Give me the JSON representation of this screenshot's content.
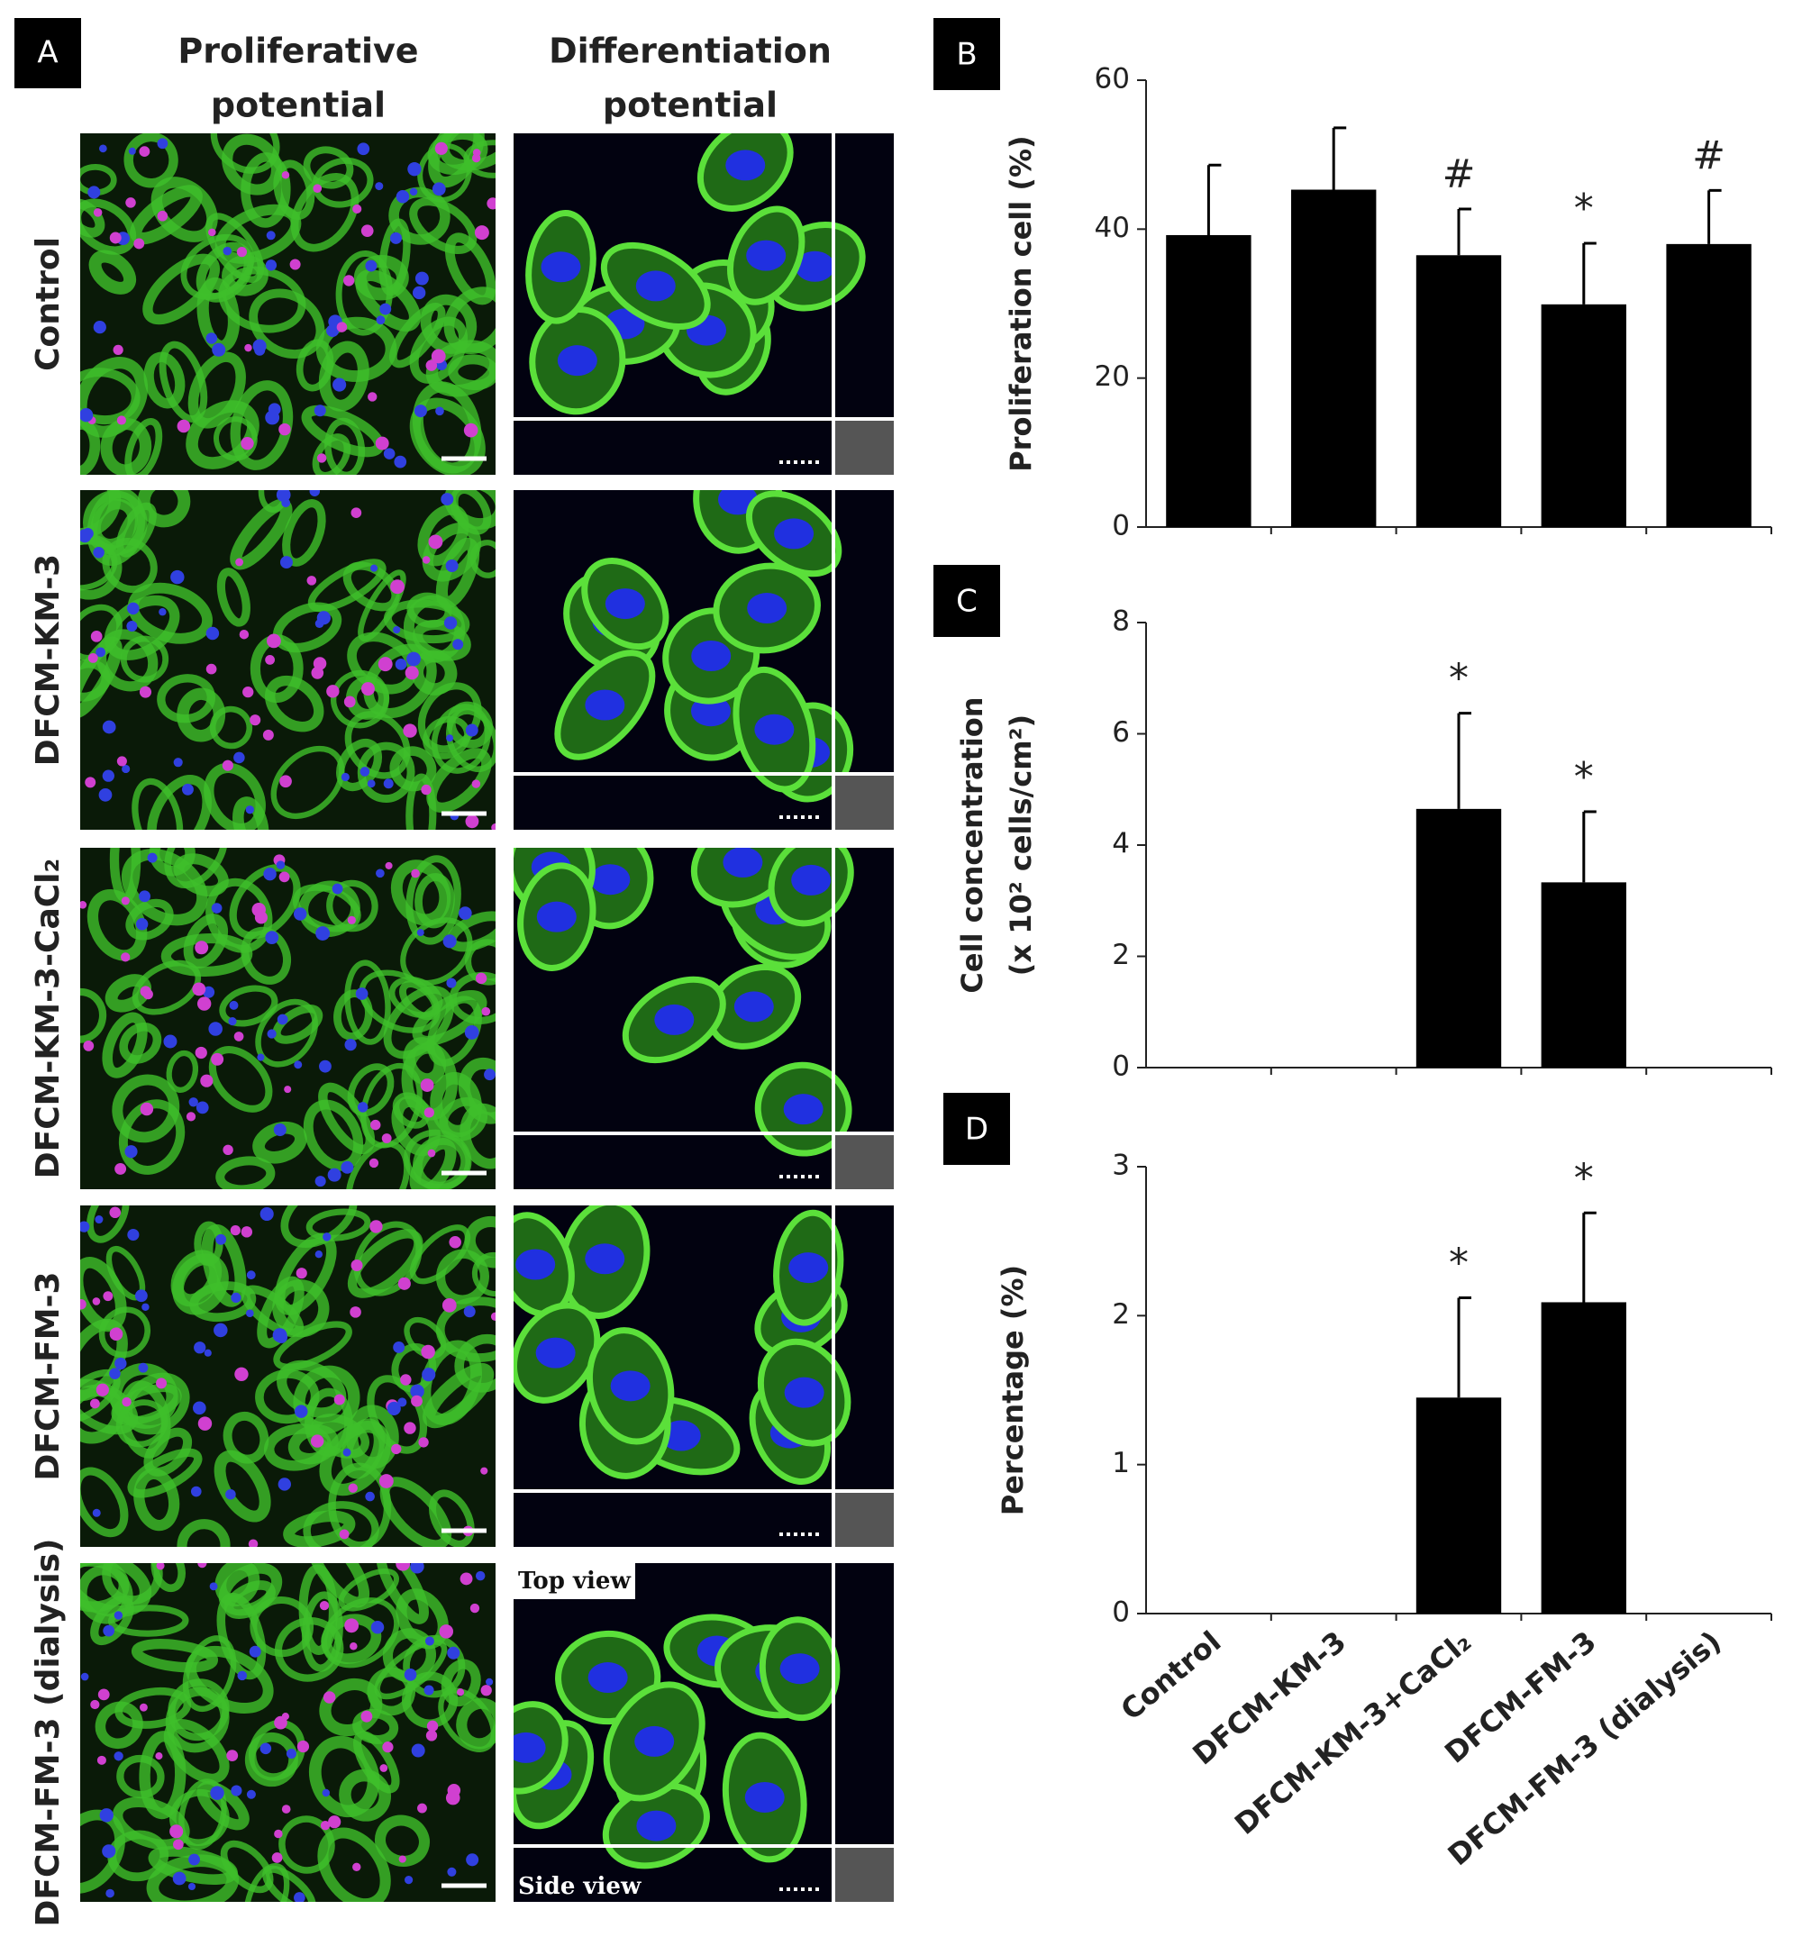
{
  "panel_a": {
    "label": "A",
    "columns": [
      [
        "Proliferative",
        "potential"
      ],
      [
        "Differentiation",
        "potential"
      ]
    ],
    "rows": [
      "Control",
      "DFCM-KM-3",
      "DFCM-KM-3-CaCl₂",
      "DFCM-FM-3",
      "DFCM-FM-3 (dialysis)"
    ],
    "top_view": "Top view",
    "side_view": "Side view"
  },
  "chart_data": [
    {
      "type": "bar",
      "label": "B",
      "y_label": [
        "Proliferation cell (%)"
      ],
      "categories": [
        null,
        null,
        null,
        null,
        null
      ],
      "values": [
        39.2,
        45.3,
        36.5,
        29.9,
        38.0
      ],
      "errors": [
        9.4,
        8.3,
        6.2,
        8.2,
        7.2
      ],
      "markers": [
        null,
        null,
        "#",
        "*",
        "#"
      ],
      "color": "#000000",
      "ylim": [
        0,
        60
      ],
      "yticks": [
        0,
        20,
        40,
        60
      ]
    },
    {
      "type": "bar",
      "label": "C",
      "y_label": [
        "Cell concentration",
        "(x 10² cells/cm²)"
      ],
      "categories": [
        null,
        null,
        null,
        null,
        null
      ],
      "values": [
        0,
        0,
        4.65,
        3.33,
        0
      ],
      "errors": [
        0,
        0,
        1.72,
        1.27,
        0
      ],
      "markers": [
        null,
        null,
        "*",
        "*",
        null
      ],
      "color": "#000000",
      "ylim": [
        0,
        8
      ],
      "yticks": [
        0,
        2,
        4,
        6,
        8
      ]
    },
    {
      "type": "bar",
      "label": "D",
      "y_label": [
        "Percentage (%)"
      ],
      "categories": [
        "Control",
        "DFCM-KM-3",
        "DFCM-KM-3+CaCl₂",
        "DFCM-FM-3",
        "DFCM-FM-3 (dialysis)"
      ],
      "values": [
        0,
        0,
        1.45,
        2.09,
        0
      ],
      "errors": [
        0,
        0,
        0.67,
        0.6,
        0
      ],
      "markers": [
        null,
        null,
        "*",
        "*",
        null
      ],
      "color": "#000000",
      "ylim": [
        0,
        3
      ],
      "yticks": [
        0,
        1,
        2,
        3
      ]
    }
  ]
}
